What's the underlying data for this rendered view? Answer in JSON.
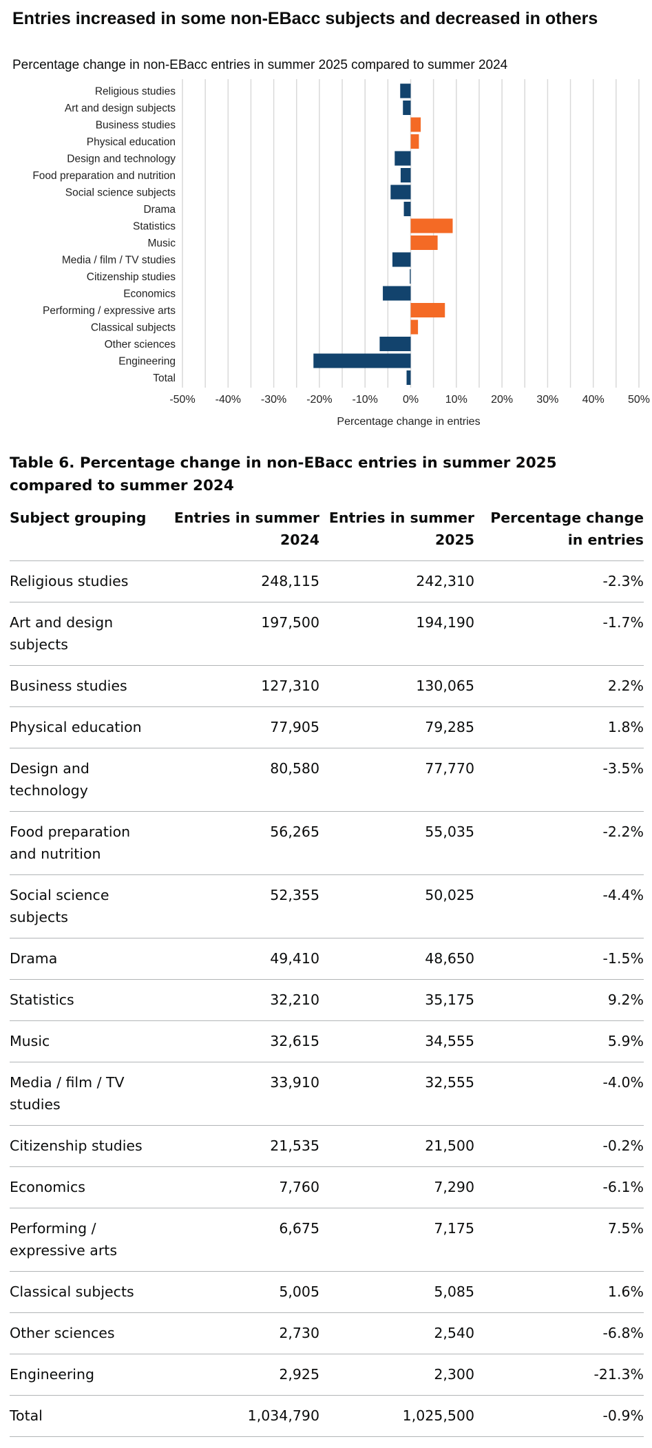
{
  "chart": {
    "title": "Entries increased in some non-EBacc subjects and decreased in others",
    "subtitle": "Percentage change in non-EBacc entries in summer 2025 compared to summer 2024"
  },
  "chart_data": {
    "type": "bar",
    "orientation": "horizontal",
    "categories": [
      "Religious studies",
      "Art and design subjects",
      "Business studies",
      "Physical education",
      "Design and technology",
      "Food preparation and nutrition",
      "Social science subjects",
      "Drama",
      "Statistics",
      "Music",
      "Media / film / TV studies",
      "Citizenship studies",
      "Economics",
      "Performing / expressive arts",
      "Classical subjects",
      "Other sciences",
      "Engineering",
      "Total"
    ],
    "values": [
      -2.3,
      -1.7,
      2.2,
      1.8,
      -3.5,
      -2.2,
      -4.4,
      -1.5,
      9.2,
      5.9,
      -4.0,
      -0.2,
      -6.1,
      7.5,
      1.6,
      -6.8,
      -21.3,
      -0.9
    ],
    "xlabel": "Percentage change in entries",
    "ylabel": "",
    "xlim": [
      -50,
      50
    ],
    "xticks": [
      "-50%",
      "-40%",
      "-30%",
      "-20%",
      "-10%",
      "0%",
      "10%",
      "20%",
      "30%",
      "40%",
      "50%"
    ],
    "grid": true,
    "legend": "none",
    "colors": {
      "decrease": "#12436d",
      "increase": "#f46a25"
    }
  },
  "table": {
    "caption": "Table 6. Percentage change in non-EBacc entries in summer 2025 compared to summer 2024",
    "headers": [
      "Subject grouping",
      "Entries in summer 2024",
      "Entries in summer 2025",
      "Percentage change in entries"
    ],
    "rows": [
      [
        "Religious studies",
        "248,115",
        "242,310",
        "-2.3%"
      ],
      [
        "Art and design subjects",
        "197,500",
        "194,190",
        "-1.7%"
      ],
      [
        "Business studies",
        "127,310",
        "130,065",
        "2.2%"
      ],
      [
        "Physical education",
        "77,905",
        "79,285",
        "1.8%"
      ],
      [
        "Design and technology",
        "80,580",
        "77,770",
        "-3.5%"
      ],
      [
        "Food preparation and nutrition",
        "56,265",
        "55,035",
        "-2.2%"
      ],
      [
        "Social science subjects",
        "52,355",
        "50,025",
        "-4.4%"
      ],
      [
        "Drama",
        "49,410",
        "48,650",
        "-1.5%"
      ],
      [
        "Statistics",
        "32,210",
        "35,175",
        "9.2%"
      ],
      [
        "Music",
        "32,615",
        "34,555",
        "5.9%"
      ],
      [
        "Media / film / TV studies",
        "33,910",
        "32,555",
        "-4.0%"
      ],
      [
        "Citizenship studies",
        "21,535",
        "21,500",
        "-0.2%"
      ],
      [
        "Economics",
        "7,760",
        "7,290",
        "-6.1%"
      ],
      [
        "Performing / expressive arts",
        "6,675",
        "7,175",
        "7.5%"
      ],
      [
        "Classical subjects",
        "5,005",
        "5,085",
        "1.6%"
      ],
      [
        "Other sciences",
        "2,730",
        "2,540",
        "-6.8%"
      ],
      [
        "Engineering",
        "2,925",
        "2,300",
        "-21.3%"
      ],
      [
        "Total",
        "1,034,790",
        "1,025,500",
        "-0.9%"
      ]
    ]
  }
}
